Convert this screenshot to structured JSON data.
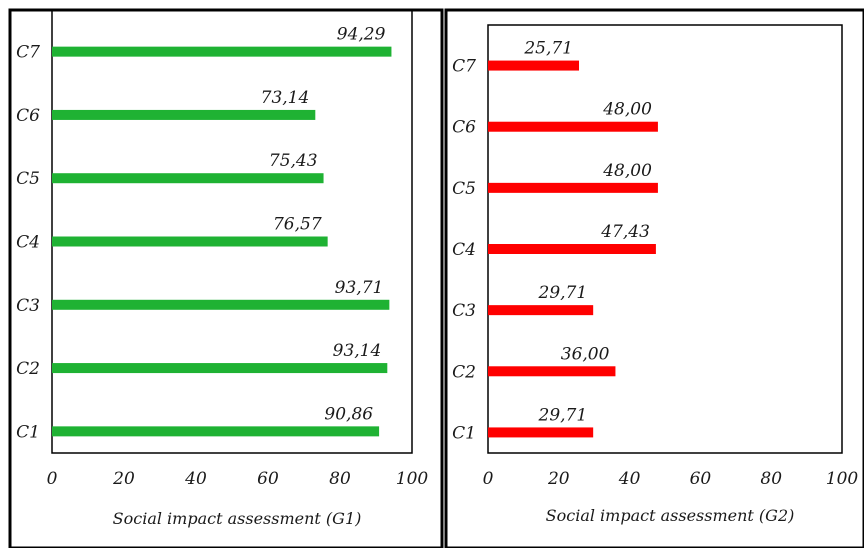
{
  "chart_data": [
    {
      "type": "bar",
      "orientation": "horizontal",
      "title": "",
      "categories": [
        "C1",
        "C2",
        "C3",
        "C4",
        "C5",
        "C6",
        "C7"
      ],
      "values": [
        90.86,
        93.14,
        93.71,
        76.57,
        75.43,
        73.14,
        94.29
      ],
      "value_labels": [
        "90,86",
        "93,14",
        "93,71",
        "76,57",
        "75,43",
        "73,14",
        "94,29"
      ],
      "xlabel": "Social impact assessment (G1)",
      "ylabel": "",
      "xlim": [
        0,
        100
      ],
      "xticks": [
        "0",
        "20",
        "40",
        "60",
        "80",
        "100"
      ],
      "bar_color": "#1fb233",
      "grid": false
    },
    {
      "type": "bar",
      "orientation": "horizontal",
      "title": "",
      "categories": [
        "C1",
        "C2",
        "C3",
        "C4",
        "C5",
        "C6",
        "C7"
      ],
      "values": [
        29.71,
        36.0,
        29.71,
        47.43,
        48.0,
        48.0,
        25.71
      ],
      "value_labels": [
        "29,71",
        "36,00",
        "29,71",
        "47,43",
        "48,00",
        "48,00",
        "25,71"
      ],
      "xlabel": "Social impact assessment (G2)",
      "ylabel": "",
      "xlim": [
        0,
        100
      ],
      "xticks": [
        "0",
        "20",
        "40",
        "60",
        "80",
        "100"
      ],
      "bar_color": "#ff0000",
      "grid": false
    }
  ]
}
